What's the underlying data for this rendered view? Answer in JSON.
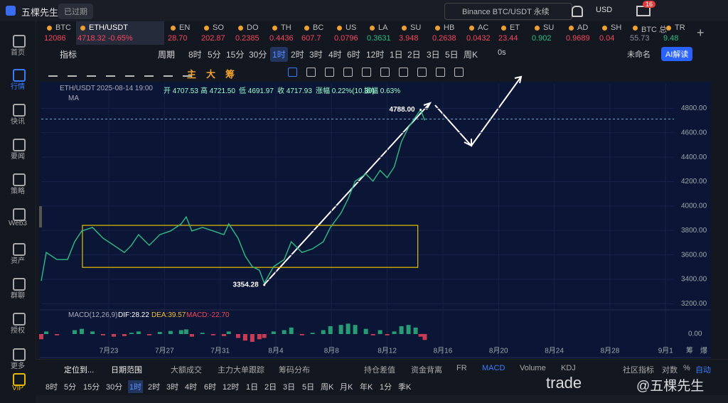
{
  "header": {
    "app": "五棵先生",
    "status": "已过期",
    "search": "Binance BTC/USDT 永续",
    "currency": "USD",
    "badge": "16"
  },
  "tickers": [
    {
      "sym": "BTC",
      "price": "12086",
      "color": "#f6465d"
    },
    {
      "sym": "ETH/USDT",
      "price": "4718.32 -0.65%",
      "color": "#f6465d",
      "active": true
    },
    {
      "sym": "EN",
      "price": "28.70",
      "color": "#f6465d"
    },
    {
      "sym": "SO",
      "price": "202.87",
      "color": "#f6465d"
    },
    {
      "sym": "DO",
      "price": "0.2385",
      "color": "#f6465d"
    },
    {
      "sym": "TH",
      "price": "0.4436",
      "color": "#f6465d"
    },
    {
      "sym": "BC",
      "price": "607.7",
      "color": "#f6465d"
    },
    {
      "sym": "US",
      "price": "0.0796",
      "color": "#f6465d"
    },
    {
      "sym": "LA",
      "price": "0.3631",
      "color": "#2ebd85"
    },
    {
      "sym": "SU",
      "price": "3.948",
      "color": "#f6465d"
    },
    {
      "sym": "HB",
      "price": "0.2638",
      "color": "#f6465d"
    },
    {
      "sym": "AC",
      "price": "0.0432",
      "color": "#f6465d"
    },
    {
      "sym": "ET",
      "price": "23.44",
      "color": "#f6465d"
    },
    {
      "sym": "SU",
      "price": "0.902",
      "color": "#2ebd85"
    },
    {
      "sym": "AD",
      "price": "0.9689",
      "color": "#f6465d"
    },
    {
      "sym": "SH",
      "price": "0.04",
      "color": "#f6465d"
    },
    {
      "sym": "BTC 总",
      "price": "55.73",
      "color": "#8a8f9c"
    },
    {
      "sym": "TR",
      "price": "9.48",
      "color": "#2ebd85"
    }
  ],
  "sidebar": [
    "首页",
    "行情",
    "快讯",
    "要闻",
    "策略",
    "Web3",
    "资产",
    "群聊",
    "授权",
    "更多",
    "VIP"
  ],
  "toolbar": {
    "indicator": "指标",
    "period": "周期",
    "periods": [
      "8时",
      "5分",
      "15分",
      "30分",
      "1时",
      "2时",
      "3时",
      "4时",
      "6时",
      "12时",
      "1日",
      "2日",
      "3日",
      "5日",
      "周K"
    ],
    "timer": "0s",
    "layout": "未命名",
    "ai": "AI解读",
    "tools": [
      "主",
      "大",
      "筹"
    ]
  },
  "chart_data": {
    "type": "line",
    "legend": [
      "ETH/USDT",
      "2025-08-14 19:00",
      "开 4707.53",
      "高 4721.50",
      "低 4691.97",
      "收 4717.93",
      "涨幅 0.22%(10.39)",
      "振幅 0.63%"
    ],
    "ma_label": "MA",
    "x": [
      -4.85,
      -4.49,
      -3.72,
      -2.96,
      -2.45,
      -1.94,
      -1.17,
      -0.41,
      0.36,
      1.12,
      1.63,
      2.14,
      2.91,
      3.67,
      4.44,
      5.2,
      5.56,
      5.97,
      6.73,
      7.5,
      8.27,
      8.62,
      9.29,
      9.8,
      10.31,
      10.82,
      11.17,
      11.84,
      12.6,
      13.11,
      13.88,
      14.64,
      15.41,
      15.92,
      16.68,
      17.19,
      17.7,
      18.47,
      18.98,
      19.49,
      20,
      20.51,
      21.02,
      21.53,
      22.04,
      22.4,
      22.7
    ],
    "series": [
      {
        "color": "#2ebd85",
        "values": [
          3387,
          3620,
          3562,
          3562,
          3708,
          3796,
          3825,
          3737,
          3679,
          3620,
          3679,
          3766,
          3679,
          3766,
          3796,
          3854,
          3912,
          3796,
          3825,
          3796,
          3766,
          3854,
          3737,
          3591,
          3504,
          3475,
          3369,
          3504,
          3562,
          3708,
          3620,
          3650,
          3708,
          3825,
          3942,
          4058,
          4204,
          4263,
          4204,
          4292,
          4233,
          4321,
          4526,
          4643,
          4730,
          4788,
          4701
        ]
      }
    ],
    "xlim": [
      -4.85,
      40.6
    ],
    "xticks": [
      {
        "value": 0,
        "label": "7月23"
      },
      {
        "value": 4,
        "label": "7月27"
      },
      {
        "value": 8,
        "label": "7月31"
      },
      {
        "value": 12,
        "label": "8月4"
      },
      {
        "value": 16,
        "label": "8月8"
      },
      {
        "value": 20,
        "label": "8月12"
      },
      {
        "value": 24,
        "label": "8月16"
      },
      {
        "value": 28,
        "label": "8月20"
      },
      {
        "value": 32,
        "label": "8月24"
      },
      {
        "value": 36,
        "label": "8月28"
      },
      {
        "value": 40,
        "label": "9月1"
      }
    ],
    "ylim": [
      3150,
      5000
    ],
    "yticks": [
      {
        "value": 3200,
        "label": "3200.00"
      },
      {
        "value": 3400,
        "label": "3400.00"
      },
      {
        "value": 3600,
        "label": "3600.00"
      },
      {
        "value": 3800,
        "label": "3800.00"
      },
      {
        "value": 4000,
        "label": "4000.00"
      },
      {
        "value": 4200,
        "label": "4200.00"
      },
      {
        "value": 4400,
        "label": "4400.00"
      },
      {
        "value": 4600,
        "label": "4600.00"
      },
      {
        "value": 4800,
        "label": "4800.00"
      }
    ],
    "grid": true,
    "last_price": 4712,
    "box": {
      "x": [
        -1.89,
        22.2
      ],
      "y": [
        3498,
        3842
      ],
      "color": "#e6c200"
    },
    "annotations": [
      {
        "x": 22.4,
        "value": 4788,
        "label": "4788.00"
      },
      {
        "x": 11.17,
        "value": 3354.28,
        "label": "3354.28"
      }
    ],
    "macd": {
      "labels": [
        "MACD(12,26,9)",
        "DIF:28.22",
        "DEA:39.57",
        "MACD:-22.70"
      ],
      "up_color": "#2ebd85",
      "down_color": "#f6465d",
      "values": [
        -20,
        10,
        -5,
        0,
        15,
        20,
        10,
        -5,
        -10,
        -8,
        5,
        10,
        -5,
        8,
        12,
        15,
        18,
        -10,
        5,
        -5,
        -8,
        10,
        -15,
        -25,
        -30,
        -20,
        -15,
        10,
        15,
        25,
        -5,
        5,
        15,
        30,
        35,
        40,
        35,
        20,
        -5,
        15,
        -5,
        10,
        30,
        35,
        25,
        -10,
        -22.7
      ],
      "ylim": [
        -60,
        60
      ],
      "yticks": [
        {
          "value": 0,
          "label": "0.00"
        }
      ]
    },
    "axis_extra": [
      "筹",
      "爆"
    ]
  },
  "bottom_tabs": [
    "定位到...",
    "日期范围",
    "大额成交",
    "主力大单跟踪",
    "筹码分布",
    "持仓差值",
    "资金背离",
    "FR",
    "MACD",
    "Volume",
    "KDJ",
    "社区指标",
    "对数",
    "%",
    "自动"
  ],
  "bottom_periods": [
    "8时",
    "5分",
    "15分",
    "30分",
    "1时",
    "2时",
    "3时",
    "4时",
    "6时",
    "12时",
    "1日",
    "2日",
    "3日",
    "5日",
    "周K",
    "月K",
    "年K",
    "1分",
    "季K"
  ],
  "watermark": [
    "trade",
    "@五棵先生"
  ]
}
